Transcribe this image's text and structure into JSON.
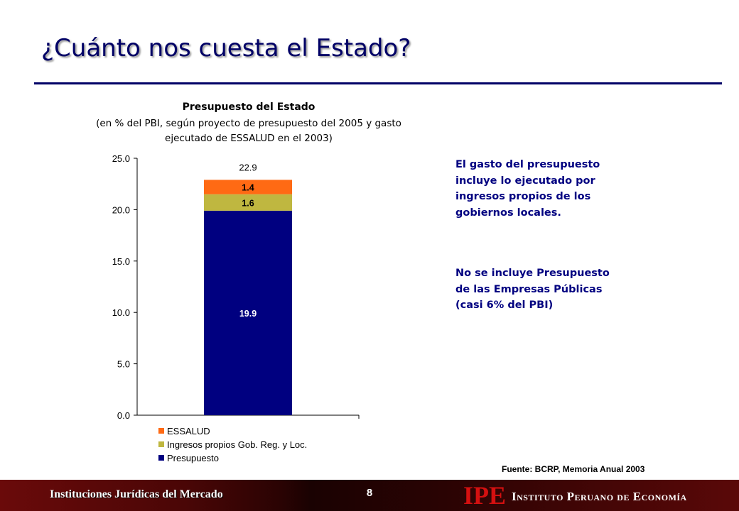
{
  "slide": {
    "title": "¿Cuánto nos cuesta el Estado?",
    "notes": [
      "El gasto del presupuesto incluye lo ejecutado por ingresos propios de los gobiernos locales.",
      "No se incluye Presupuesto de las Empresas Públicas (casi 6% del PBI)"
    ],
    "source": "Fuente: BCRP, Memoria Anual 2003"
  },
  "footer": {
    "left_text": "Instituciones Jurídicas del Mercado",
    "page_number": "8",
    "logo": "IPE",
    "organization": "Instituto Peruano de Economía"
  },
  "chart_data": {
    "type": "bar",
    "stacked": true,
    "title": "Presupuesto del Estado",
    "subtitle": "(en % del PBI, según proyecto de presupuesto del 2005 y gasto ejecutado de ESSALUD en el 2003)",
    "categories": [
      ""
    ],
    "series": [
      {
        "name": "Presupuesto",
        "values": [
          19.9
        ],
        "color": "#000080",
        "label_color": "#ffffff"
      },
      {
        "name": "Ingresos propios Gob. Reg. y Loc.",
        "values": [
          1.6
        ],
        "color": "#bfb740",
        "label_color": "#000000"
      },
      {
        "name": "ESSALUD",
        "values": [
          1.4
        ],
        "color": "#ff6a14",
        "label_color": "#000000"
      }
    ],
    "total_labels": [
      "22.9"
    ],
    "ylim": [
      0,
      25
    ],
    "yticks": [
      "0.0",
      "5.0",
      "10.0",
      "15.0",
      "20.0",
      "25.0"
    ],
    "ytick_values": [
      0,
      5,
      10,
      15,
      20,
      25
    ],
    "legend_position": "bottom-left",
    "legend_order": [
      "ESSALUD",
      "Ingresos propios Gob. Reg. y Loc.",
      "Presupuesto"
    ],
    "grid": false
  }
}
